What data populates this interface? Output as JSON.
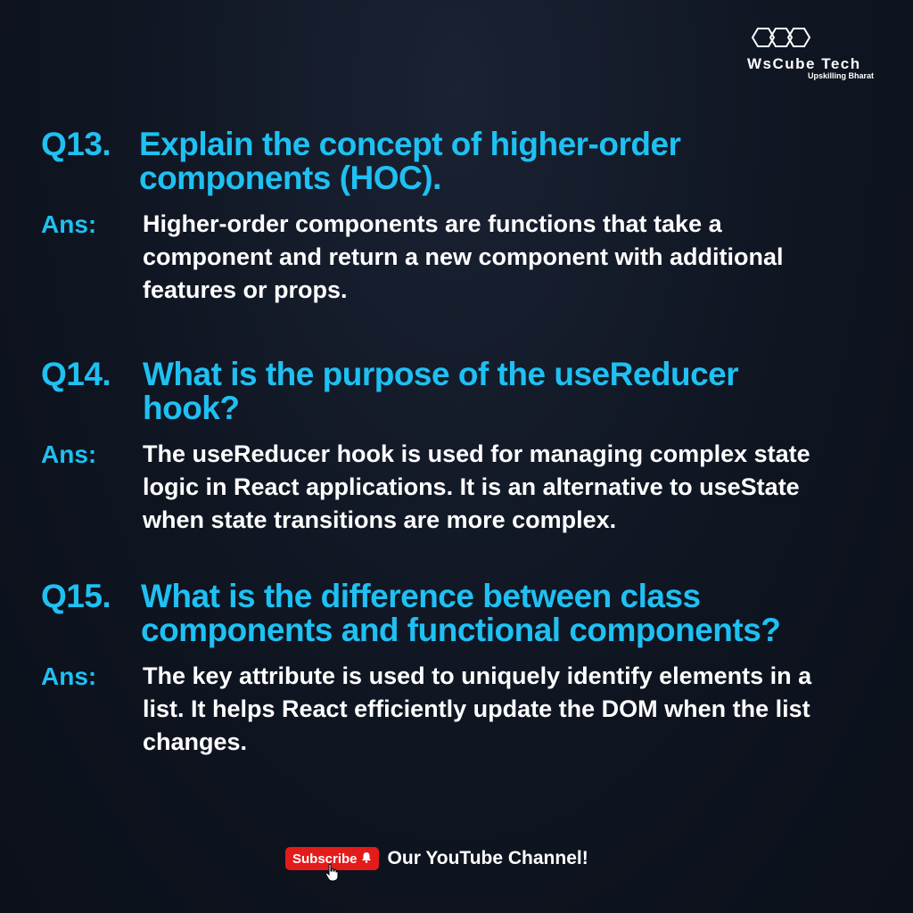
{
  "brand": {
    "name": "WsCube Tech",
    "tagline": "Upskilling Bharat",
    "logo_icon": "hexagon-cluster-icon"
  },
  "colors": {
    "accent": "#1fc0f2",
    "text": "#ffffff",
    "background": "#0f1521",
    "subscribe": "#e31b1b"
  },
  "questions": [
    {
      "number": "Q13.",
      "question": "Explain the concept of higher-order components (HOC).",
      "answer_label": "Ans:",
      "answer": "Higher-order components are functions that take a component and return a new component with additional features or props."
    },
    {
      "number": "Q14.",
      "question": "What is the purpose of the useReducer hook?",
      "answer_label": "Ans:",
      "answer": "The useReducer hook is used for managing complex state logic in React applications. It is an alternative to useState when state transitions are more complex."
    },
    {
      "number": "Q15.",
      "question": "What is the difference between class components and functional components?",
      "answer_label": "Ans:",
      "answer": "The key attribute is used to uniquely identify elements in a list. It helps React efficiently update the DOM when the list changes."
    }
  ],
  "cta": {
    "button_label": "Subscribe",
    "text": "Our YouTube Channel!",
    "bell_icon": "bell-icon",
    "cursor_icon": "hand-cursor-icon"
  }
}
